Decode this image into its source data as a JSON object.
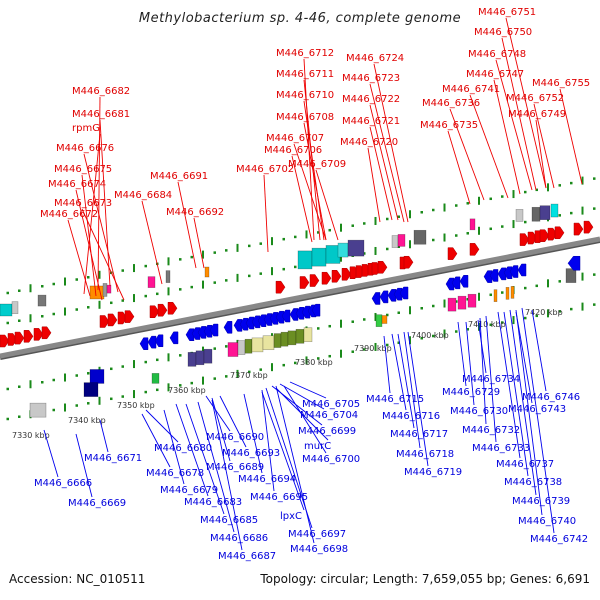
{
  "title": "Methylobacterium sp. 4-46, complete genome",
  "footer": {
    "accession": "Accession: NC_010511",
    "summary": "Topology: circular; Length: 7,659,055 bp; Genes: 6,691"
  },
  "colors": {
    "forward_strand": "#ee0000",
    "reverse_strand": "#0000ee",
    "backbone": "#888888",
    "tick": "#1a8a1a",
    "tick_label": "#333333"
  },
  "axis": {
    "unit": "kbp",
    "ticks": [
      7330,
      7340,
      7350,
      7360,
      7370,
      7380,
      7390,
      7400,
      7410,
      7420
    ]
  },
  "forward_labels": [
    "M446_6682",
    "M446_6681",
    "rpmG",
    "M446_6676",
    "M446_6675",
    "M446_6674",
    "M446_6673",
    "M446_6672",
    "M446_6684",
    "M446_6691",
    "M446_6692",
    "M446_6702",
    "M446_6712",
    "M446_6711",
    "M446_6710",
    "M446_6708",
    "M446_6707",
    "M446_6706",
    "M446_6709",
    "M446_6724",
    "M446_6723",
    "M446_6722",
    "M446_6721",
    "M446_6720",
    "M446_6751",
    "M446_6750",
    "M446_6748",
    "M446_6747",
    "M446_6741",
    "M446_6736",
    "M446_6735",
    "M446_6752",
    "M446_6749",
    "M446_6755"
  ],
  "reverse_labels": [
    "M446_6666",
    "M446_6669",
    "M446_6671",
    "M446_6680",
    "M446_6678",
    "M446_6679",
    "M446_6683",
    "M446_6685",
    "M446_6686",
    "M446_6687",
    "M446_6690",
    "M446_6693",
    "M446_6689",
    "M446_6694",
    "M446_6695",
    "lpxC",
    "M446_6697",
    "M446_6698",
    "M446_6705",
    "M446_6704",
    "M446_6699",
    "murC",
    "M446_6700",
    "M446_6715",
    "M446_6716",
    "M446_6717",
    "M446_6718",
    "M446_6719",
    "M446_6734",
    "M446_6729",
    "M446_6730",
    "M446_6732",
    "M446_6733",
    "M446_6737",
    "M446_6738",
    "M446_6739",
    "M446_6740",
    "M446_6742",
    "M446_6746",
    "M446_6743"
  ]
}
